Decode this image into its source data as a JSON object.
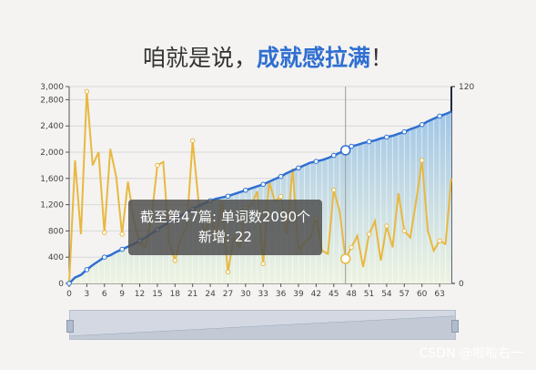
{
  "title": {
    "part1": "咱就是说，",
    "part2": "成就感拉满",
    "part3": "！"
  },
  "tooltip": {
    "line1": "截至第47篇: 单词数2090个",
    "line2": "新增: 22"
  },
  "watermark": "CSDN @啦啦右一",
  "colors": {
    "cumulative_line": "#2f6fd1",
    "new_line": "#e8b840",
    "area_top": "#9cc3e6",
    "area_bottom": "#eef4e1"
  },
  "chart_data": {
    "type": "line",
    "x_ticks": [
      0,
      3,
      6,
      9,
      12,
      15,
      18,
      21,
      24,
      27,
      30,
      33,
      36,
      39,
      42,
      45,
      48,
      51,
      54,
      57,
      60,
      63
    ],
    "y_left": {
      "ticks": [
        0,
        400,
        800,
        1200,
        1600,
        2000,
        2400,
        2800,
        3000
      ],
      "tick_labels": [
        "0",
        "400",
        "800",
        "1,200",
        "1,600",
        "2,000",
        "2,400",
        "2,800",
        "3,000"
      ],
      "ylim": [
        0,
        3000
      ]
    },
    "y_right": {
      "ticks": [
        0,
        120
      ],
      "ylim": [
        0,
        120
      ]
    },
    "xlim": [
      0,
      65
    ],
    "series": [
      {
        "axis": "left",
        "values": [
          0,
          90,
          130,
          210,
          280,
          340,
          400,
          430,
          480,
          520,
          560,
          600,
          650,
          700,
          760,
          820,
          880,
          930,
          980,
          1030,
          1080,
          1130,
          1180,
          1220,
          1260,
          1290,
          1310,
          1330,
          1360,
          1390,
          1420,
          1450,
          1480,
          1510,
          1550,
          1590,
          1630,
          1680,
          1720,
          1760,
          1800,
          1840,
          1860,
          1880,
          1910,
          1950,
          1990,
          2030,
          2090,
          2110,
          2140,
          2160,
          2180,
          2210,
          2230,
          2250,
          2280,
          2310,
          2350,
          2380,
          2420,
          2470,
          2510,
          2550,
          2580,
          2620
        ]
      },
      {
        "axis": "right",
        "values": [
          0,
          75,
          30,
          117,
          72,
          80,
          31,
          82,
          65,
          30,
          62,
          38,
          25,
          22,
          40,
          72,
          74,
          25,
          14,
          28,
          34,
          87,
          50,
          30,
          40,
          30,
          50,
          7,
          28,
          22,
          46,
          48,
          56,
          12,
          62,
          50,
          53,
          30,
          70,
          20,
          25,
          28,
          40,
          20,
          18,
          57,
          44,
          15,
          22,
          29,
          10,
          30,
          38,
          14,
          35,
          22,
          55,
          32,
          28,
          50,
          75,
          32,
          20,
          26,
          24,
          64
        ]
      }
    ],
    "legend": []
  }
}
